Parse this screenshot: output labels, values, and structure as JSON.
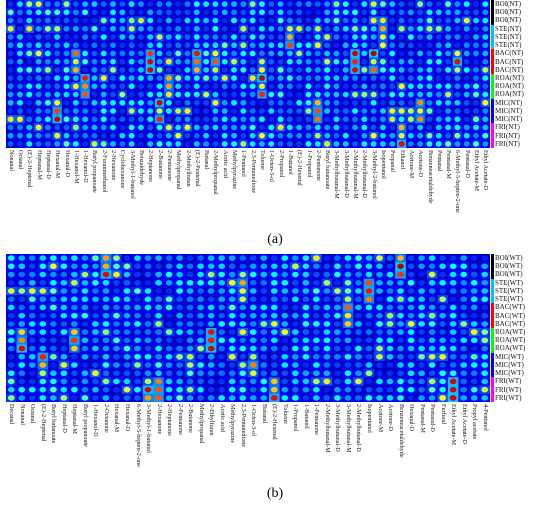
{
  "figure": {
    "caption_a": "(a)",
    "caption_b": "(b)"
  },
  "chart_data": [
    {
      "type": "heatmap",
      "panel": "a",
      "rows": [
        "BOI(NT)",
        "BOI(NT)",
        "BOI(NT)",
        "STE(NT)",
        "STE(NT)",
        "STE(NT)",
        "BAC(NT)",
        "BAC(NT)",
        "BAC(NT)",
        "ROA(NT)",
        "ROA(NT)",
        "ROA(NT)",
        "MIC(NT)",
        "MIC(NT)",
        "MIC(NT)",
        "FRI(NT)",
        "FRI(NT)",
        "FRI(NT)"
      ],
      "row_group_colors": [
        "#000000",
        "#000000",
        "#000000",
        "#00bfff",
        "#00bfff",
        "#00bfff",
        "#ff0000",
        "#ff0000",
        "#ff0000",
        "#00ff00",
        "#00ff00",
        "#00ff00",
        "#0000ff",
        "#0000ff",
        "#0000ff",
        "#ff00ff",
        "#ff00ff",
        "#ff00ff"
      ],
      "columns": [
        "Nonanal",
        "Octanal",
        "(E)-2-Heptenal",
        "Heptanal-M",
        "Heptanal-D",
        "Hexanal-M",
        "Hexanal-D",
        "1-Hexanol-M",
        "1-Hexanol-D",
        "Butyl propanoate",
        "2-Furanmethanol",
        "2-Hexanone",
        "Cyclohexanone",
        "3-Methyl-1-butanol",
        "Benzaldehyde",
        "2-Heptanone",
        "2-Butanone",
        "2-Pentanone",
        "Methylpropanal",
        "2-Methylbutan",
        "(E)-2-Pentenal",
        "Butanal",
        "2-Methylpropanal",
        "Acetic acid",
        "Methylpyrazine",
        "1-Pentanol",
        "2,3-Pentanedione",
        "Toluene",
        "1-Octen-3-ol",
        "2-Propanol",
        "1-Butanol",
        "(E)-2-Hexenal",
        "1-Propanol",
        "2-Pentanone",
        "Butyl butanoate",
        "3-Methylbutanal-M",
        "3-Methylbutanal-D",
        "2-Methylbutanal-M",
        "2-Methylbutanal-D",
        "3-Methyl-2-butanol",
        "Isopentanol",
        "Propanal",
        "Ethanol",
        "Acetone-M",
        "Acetone-D",
        "Benzeneacetaldehyde",
        "Pentanal",
        "Pentanal-M",
        "6-Methyl-5-hepten-2-one",
        "Pentanal-D",
        "Ethyl Acetate-M",
        "Ethyl Acetate-D"
      ],
      "value_range": [
        0,
        1
      ],
      "colormap": "jet",
      "legend_position": "right"
    },
    {
      "type": "heatmap",
      "panel": "b",
      "rows": [
        "BOI(WT)",
        "BOI(WT)",
        "BOI(WT)",
        "STE(WT)",
        "STE(WT)",
        "STE(WT)",
        "BAC(WT)",
        "BAC(WT)",
        "BAC(WT)",
        "ROA(WT)",
        "ROA(WT)",
        "ROA(WT)",
        "MIC(WT)",
        "MIC(WT)",
        "MIC(WT)",
        "FRI(WT)",
        "FRI(WT)",
        "FRI(WT)"
      ],
      "row_group_colors": [
        "#000000",
        "#000000",
        "#000000",
        "#00bfff",
        "#00bfff",
        "#00bfff",
        "#ff0000",
        "#ff0000",
        "#ff0000",
        "#00ff00",
        "#00ff00",
        "#00ff00",
        "#0000ff",
        "#0000ff",
        "#0000ff",
        "#ff00ff",
        "#ff00ff",
        "#ff00ff"
      ],
      "columns": [
        "Decanal",
        "Nonanal",
        "Octanal",
        "(E)-2-Heptenal",
        "Butyl butanoate",
        "Heptanal-D",
        "Heptanal-M",
        "Butyl propanoate",
        "1-Hexanol-D",
        "2-Octanone",
        "Hexanal-M",
        "Hexanal-D",
        "6-Methyl-5-hepten-2-one",
        "3-Methyl-1-butanol",
        "2-Hexanone",
        "2-Heptanone",
        "2-Pentanone",
        "2-Butanone",
        "Methylpropanal",
        "2-Ethylfuran",
        "Acetic acid",
        "Methylpyrazine",
        "2,3-Pentanedione",
        "1-Octen-3-ol",
        "Butanal",
        "(E)-2-Hexenal",
        "Toluene",
        "1-Propanol",
        "1-Butanol",
        "1-Pentanone",
        "2-Methylbutanal-M",
        "3-Methylbutanal-D",
        "3-Methylbutanal-M",
        "2-Methylbutanal-D",
        "Isopentanol",
        "Acetone-M",
        "Acetone-D",
        "Benzeneacetaldehyde",
        "Hexanal-D",
        "Pentanal-M",
        "Pentanal-D",
        "Furfural",
        "Ethyl Acetate-M",
        "Ethyl Acetate-D",
        "Propyl acetate",
        "4-Pentanol"
      ],
      "value_range": [
        0,
        1
      ],
      "colormap": "jet",
      "legend_position": "right"
    }
  ]
}
